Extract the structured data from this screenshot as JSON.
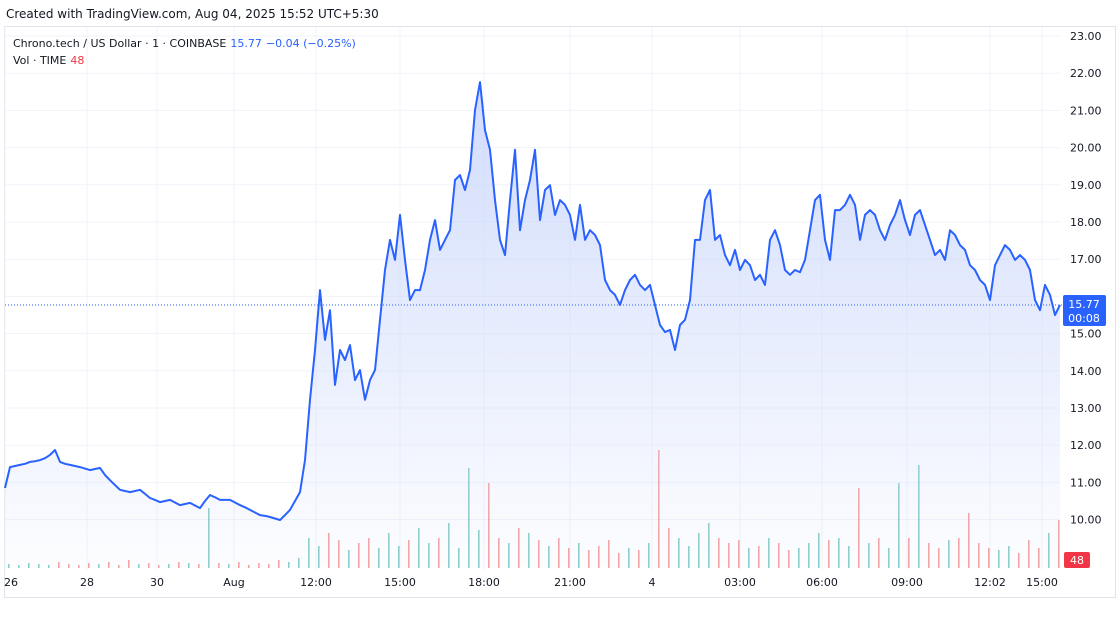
{
  "header": {
    "credit": "Created with TradingView.com, Aug 04, 2025 15:52 UTC+5:30"
  },
  "legend": {
    "symbol": "Chrono.tech / US Dollar · 1 · COINBASE",
    "last": "15.77",
    "change": "−0.04 (−0.25%)",
    "vol_label": "Vol · TIME",
    "vol_value": "48"
  },
  "colors": {
    "line": "#2962ff",
    "area_top": "#c9d6fb",
    "up": "#26a69a",
    "down": "#ef5350",
    "price_tag": "#2962ff",
    "vol_tag": "#f23645"
  },
  "price_tag": {
    "price": "15.77",
    "countdown": "00:08"
  },
  "vol_tag": "48",
  "chart_data": {
    "type": "area",
    "ylim": [
      9.5,
      23.0
    ],
    "y_ticks": [
      "23.00",
      "22.00",
      "21.00",
      "20.00",
      "19.00",
      "18.00",
      "17.00",
      "16.00",
      "15.00",
      "14.00",
      "13.00",
      "12.00",
      "11.00",
      "10.00"
    ],
    "x_ticks": [
      {
        "label": "26",
        "at": 0
      },
      {
        "label": "28",
        "at": 16.4
      },
      {
        "label": "30",
        "at": 30.4
      },
      {
        "label": "Aug",
        "at": 45.8
      },
      {
        "label": "12:00",
        "at": 62.2
      },
      {
        "label": "15:00",
        "at": 79
      },
      {
        "label": "18:00",
        "at": 95.8
      },
      {
        "label": "21:00",
        "at": 113
      },
      {
        "label": "4",
        "at": 129.4
      },
      {
        "label": "03:00",
        "at": 147
      },
      {
        "label": "06:00",
        "at": 163.4
      },
      {
        "label": "09:00",
        "at": 180.4
      },
      {
        "label": "12:02",
        "at": 197
      },
      {
        "label": "15:00",
        "at": 207.4
      }
    ],
    "grid": true,
    "last_price": 15.77,
    "price": [
      10.85,
      11.41,
      11.44,
      11.47,
      11.5,
      11.55,
      11.57,
      11.6,
      11.65,
      11.74,
      11.87,
      11.55,
      11.5,
      11.47,
      11.44,
      11.41,
      11.37,
      11.33,
      11.36,
      11.39,
      11.2,
      11.06,
      10.93,
      10.8,
      10.77,
      10.74,
      10.77,
      10.8,
      10.69,
      10.58,
      10.53,
      10.47,
      10.5,
      10.53,
      10.46,
      10.39,
      10.42,
      10.45,
      10.38,
      10.31,
      10.5,
      10.66,
      10.6,
      10.53,
      10.53,
      10.53,
      10.46,
      10.39,
      10.33,
      10.26,
      10.19,
      10.12,
      10.1,
      10.07,
      10.03,
      9.99,
      10.12,
      10.26,
      10.5,
      10.74,
      11.6,
      13.22,
      14.56,
      16.17,
      14.83,
      15.63,
      13.62,
      14.56,
      14.29,
      14.69,
      13.75,
      14.02,
      13.22,
      13.75,
      14.02,
      15.37,
      16.71,
      17.52,
      16.98,
      18.19,
      16.98,
      15.9,
      16.17,
      16.17,
      16.71,
      17.52,
      18.05,
      17.25,
      17.52,
      17.78,
      19.13,
      19.26,
      18.86,
      19.4,
      21.01,
      21.76,
      20.47,
      19.94,
      18.59,
      17.52,
      17.11,
      18.59,
      19.94,
      17.78,
      18.59,
      19.13,
      19.94,
      18.05,
      18.86,
      18.99,
      18.19,
      18.59,
      18.46,
      18.19,
      17.52,
      18.46,
      17.52,
      17.78,
      17.65,
      17.38,
      16.44,
      16.17,
      16.04,
      15.77,
      16.17,
      16.44,
      16.58,
      16.31,
      16.17,
      16.31,
      15.77,
      15.23,
      15.04,
      15.1,
      14.56,
      15.23,
      15.37,
      15.9,
      17.52,
      17.52,
      18.59,
      18.86,
      17.52,
      17.65,
      17.11,
      16.84,
      17.25,
      16.71,
      16.98,
      16.84,
      16.44,
      16.58,
      16.31,
      17.52,
      17.78,
      17.38,
      16.71,
      16.58,
      16.71,
      16.65,
      16.98,
      17.78,
      18.59,
      18.73,
      17.52,
      16.98,
      18.32,
      18.32,
      18.46,
      18.73,
      18.46,
      17.52,
      18.19,
      18.32,
      18.19,
      17.78,
      17.52,
      17.92,
      18.19,
      18.59,
      18.05,
      17.65,
      18.19,
      18.32,
      17.92,
      17.52,
      17.11,
      17.25,
      16.98,
      17.78,
      17.65,
      17.38,
      17.25,
      16.84,
      16.71,
      16.44,
      16.31,
      15.9,
      16.84,
      17.11,
      17.38,
      17.25,
      16.98,
      17.11,
      16.98,
      16.71,
      15.9,
      15.63,
      16.31,
      16.04,
      15.5,
      15.77
    ],
    "volume": [
      4,
      3,
      5,
      4,
      3,
      6,
      4,
      3,
      5,
      4,
      6,
      3,
      8,
      4,
      5,
      3,
      4,
      6,
      5,
      4,
      60,
      5,
      4,
      6,
      3,
      5,
      4,
      8,
      6,
      10,
      30,
      22,
      35,
      28,
      18,
      25,
      30,
      20,
      35,
      22,
      28,
      40,
      25,
      30,
      45,
      20,
      100,
      38,
      85,
      30,
      25,
      40,
      35,
      28,
      22,
      30,
      20,
      25,
      18,
      22,
      28,
      15,
      20,
      18,
      25,
      118,
      40,
      30,
      22,
      35,
      45,
      30,
      25,
      28,
      20,
      22,
      30,
      25,
      18,
      20,
      25,
      35,
      28,
      30,
      22,
      80,
      25,
      30,
      20,
      85,
      30,
      103,
      25,
      20,
      28,
      30,
      55,
      25,
      20,
      18,
      22,
      15,
      28,
      20,
      35,
      48
    ]
  }
}
